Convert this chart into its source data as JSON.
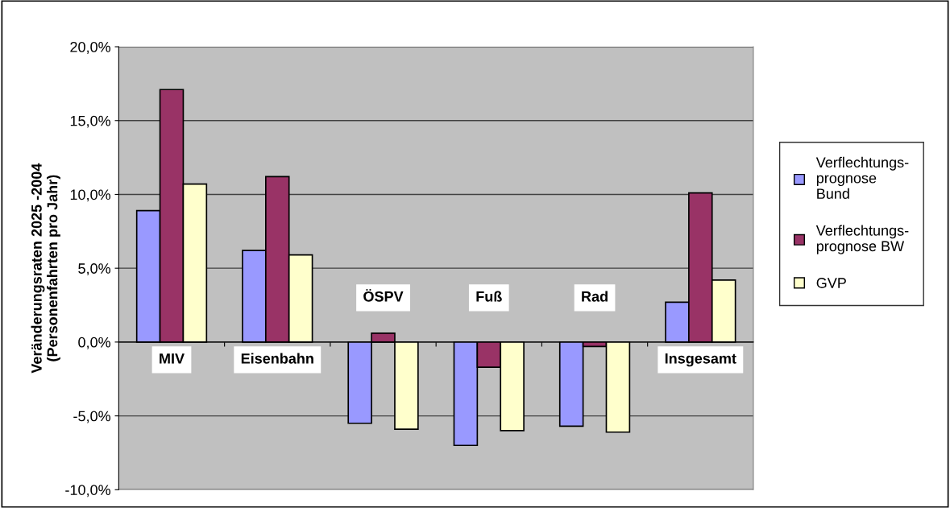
{
  "chart_data": {
    "type": "bar",
    "ylabel": "Veränderungsraten 2025 -2004\n(Personenfahrten pro Jahr)",
    "categories": [
      "MIV",
      "Eisenbahn",
      "ÖSPV",
      "Fuß",
      "Rad",
      "Insgesamt"
    ],
    "series": [
      {
        "name": "Verflechtungs-\nprognose\nBund",
        "color": "#9999ff",
        "values": [
          8.9,
          6.2,
          -5.5,
          -7.0,
          -5.7,
          2.7
        ]
      },
      {
        "name": "Verflechtungs-\nprognose BW",
        "color": "#993366",
        "values": [
          17.1,
          11.2,
          0.6,
          -1.7,
          -0.3,
          10.1
        ]
      },
      {
        "name": "GVP",
        "color": "#ffffcc",
        "values": [
          10.7,
          5.9,
          -5.9,
          -6.0,
          -6.1,
          4.2
        ]
      }
    ],
    "ylim": [
      -10,
      20
    ],
    "yticks": [
      {
        "value": -10,
        "label": "-10,0%"
      },
      {
        "value": -5,
        "label": "-5,0%"
      },
      {
        "value": 0,
        "label": "0,0%"
      },
      {
        "value": 5,
        "label": "5,0%"
      },
      {
        "value": 10,
        "label": "10,0%"
      },
      {
        "value": 15,
        "label": "15,0%"
      },
      {
        "value": 20,
        "label": "20,0%"
      }
    ],
    "grid": "y",
    "legend": "right"
  }
}
